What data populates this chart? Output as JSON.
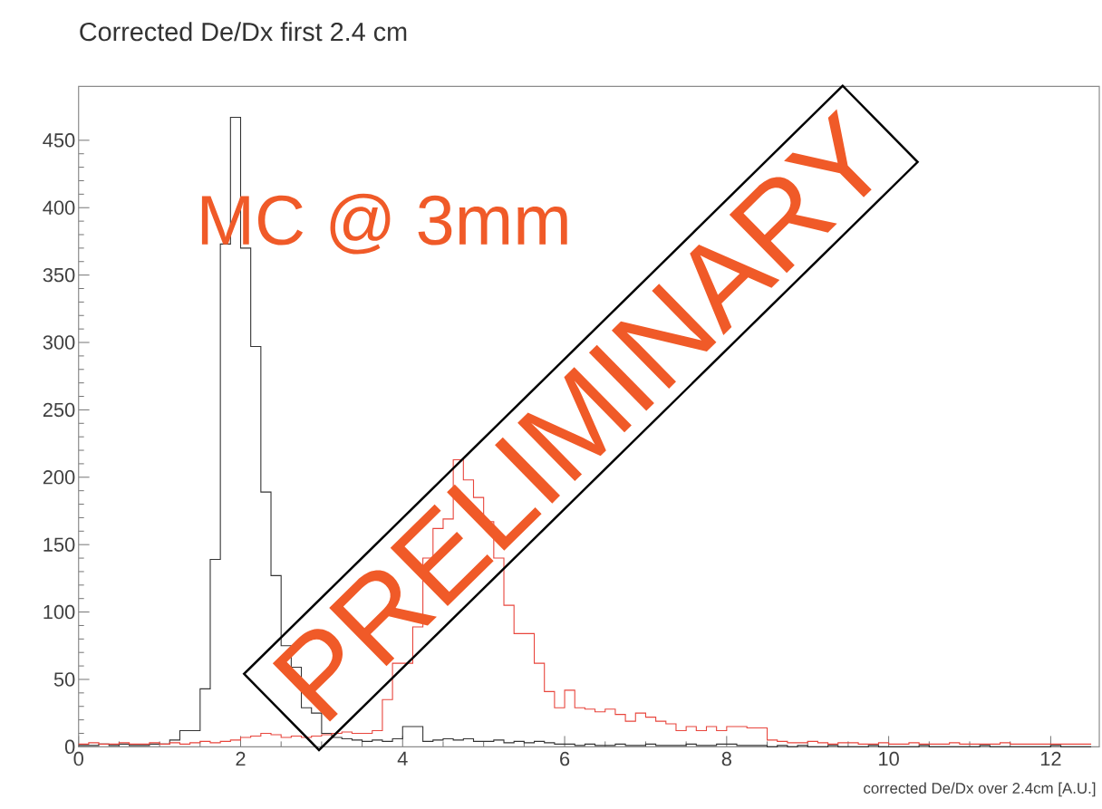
{
  "chart_data": {
    "type": "histogram",
    "title": "Corrected De/Dx first 2.4 cm",
    "xlabel": "corrected De/Dx over 2.4cm [A.U.]",
    "annotations": [
      "MC @ 3mm",
      "PRELIMINARY"
    ],
    "bins": [
      0,
      0.125,
      0.25,
      0.375,
      0.5,
      0.625,
      0.75,
      0.875,
      1,
      1.125,
      1.25,
      1.375,
      1.5,
      1.625,
      1.75,
      1.875,
      2,
      2.125,
      2.25,
      2.375,
      2.5,
      2.625,
      2.75,
      2.875,
      3,
      3.125,
      3.25,
      3.375,
      3.5,
      3.625,
      3.75,
      3.875,
      4,
      4.125,
      4.25,
      4.375,
      4.5,
      4.625,
      4.75,
      4.875,
      5,
      5.125,
      5.25,
      5.375,
      5.5,
      5.625,
      5.75,
      5.875,
      6,
      6.125,
      6.25,
      6.375,
      6.5,
      6.625,
      6.75,
      6.875,
      7,
      7.125,
      7.25,
      7.375,
      7.5,
      7.625,
      7.75,
      7.875,
      8,
      8.125,
      8.25,
      8.375,
      8.5,
      8.625,
      8.75,
      8.875,
      9,
      9.125,
      9.25,
      9.375,
      9.5,
      9.625,
      9.75,
      9.875,
      10,
      10.125,
      10.25,
      10.375,
      10.5,
      10.625,
      10.75,
      10.875,
      11,
      11.125,
      11.25,
      11.375,
      11.5,
      11.625,
      11.75,
      11.875,
      12,
      12.125,
      12.25,
      12.375,
      12.5
    ],
    "series": [
      {
        "color": "#333333",
        "values": [
          1,
          1,
          2,
          1,
          2,
          1,
          1,
          2,
          2,
          5,
          12,
          12,
          43,
          139,
          373,
          467,
          370,
          297,
          189,
          127,
          75,
          59,
          29,
          25,
          10,
          7,
          6,
          5,
          4,
          5,
          4,
          6,
          15,
          15,
          4,
          5,
          6,
          5,
          6,
          4,
          4,
          5,
          3,
          4,
          3,
          4,
          3,
          2,
          2,
          1,
          2,
          1,
          1,
          2,
          1,
          1,
          2,
          1,
          1,
          1,
          2,
          1,
          1,
          2,
          2,
          1,
          1,
          1,
          0,
          1,
          0,
          1,
          0,
          0,
          1,
          0,
          0,
          0,
          1,
          0,
          0,
          0,
          0,
          1,
          0,
          0,
          0,
          0,
          0,
          1,
          0,
          0,
          0,
          0,
          0,
          0,
          1,
          0,
          0,
          0
        ]
      },
      {
        "color": "#e8453c",
        "values": [
          2,
          3,
          2,
          2,
          3,
          2,
          2,
          3,
          2,
          3,
          2,
          3,
          4,
          3,
          4,
          5,
          7,
          8,
          10,
          9,
          7,
          8,
          7,
          8,
          9,
          10,
          11,
          10,
          10,
          12,
          35,
          62,
          62,
          89,
          140,
          162,
          169,
          213,
          198,
          185,
          167,
          140,
          105,
          84,
          84,
          62,
          41,
          29,
          42,
          29,
          28,
          26,
          28,
          24,
          19,
          25,
          22,
          19,
          17,
          12,
          15,
          12,
          15,
          12,
          15,
          15,
          14,
          14,
          5,
          4,
          3,
          3,
          4,
          3,
          2,
          3,
          3,
          2,
          2,
          3,
          2,
          2,
          3,
          2,
          2,
          2,
          3,
          2,
          2,
          2,
          2,
          3,
          2,
          2,
          2,
          2,
          2,
          2,
          2,
          2
        ]
      }
    ],
    "xlim": [
      0,
      12.6
    ],
    "ylim": [
      0,
      490
    ],
    "xticks": [
      0,
      2,
      4,
      6,
      8,
      10,
      12
    ],
    "yticks": [
      0,
      50,
      100,
      150,
      200,
      250,
      300,
      350,
      400,
      450
    ]
  }
}
